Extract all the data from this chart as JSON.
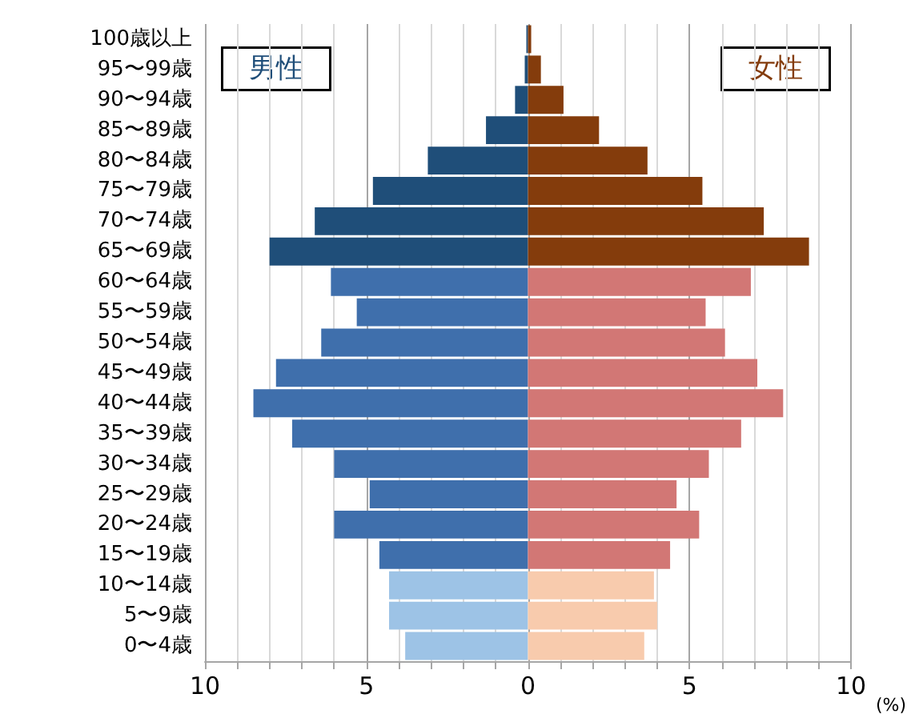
{
  "chart_data": {
    "type": "bar",
    "orientation": "horizontal",
    "xlabel": "(%)",
    "categories": [
      "100歳以上",
      "95〜99歳",
      "90〜94歳",
      "85〜89歳",
      "80〜84歳",
      "75〜79歳",
      "70〜74歳",
      "65〜69歳",
      "60〜64歳",
      "55〜59歳",
      "50〜54歳",
      "45〜49歳",
      "40〜44歳",
      "35〜39歳",
      "30〜34歳",
      "25〜29歳",
      "20〜24歳",
      "15〜19歳",
      "10〜14歳",
      "5〜9歳",
      "0〜4歳"
    ],
    "series": [
      {
        "name": "男性",
        "values": [
          -0.05,
          -0.1,
          -0.4,
          -1.3,
          -3.1,
          -4.8,
          -6.6,
          -8.0,
          -6.1,
          -5.3,
          -6.4,
          -7.8,
          -8.5,
          -7.3,
          -6.0,
          -4.9,
          -6.0,
          -4.6,
          -4.3,
          -4.3,
          -3.8
        ],
        "colors": [
          "#1f4e79",
          "#1f4e79",
          "#1f4e79",
          "#1f4e79",
          "#1f4e79",
          "#1f4e79",
          "#1f4e79",
          "#1f4e79",
          "#3f6fac",
          "#3f6fac",
          "#3f6fac",
          "#3f6fac",
          "#3f6fac",
          "#3f6fac",
          "#3f6fac",
          "#3f6fac",
          "#3f6fac",
          "#3f6fac",
          "#9dc3e6",
          "#9dc3e6",
          "#9dc3e6"
        ]
      },
      {
        "name": "女性",
        "values": [
          0.1,
          0.4,
          1.1,
          2.2,
          3.7,
          5.4,
          7.3,
          8.7,
          6.9,
          5.5,
          6.1,
          7.1,
          7.9,
          6.6,
          5.6,
          4.6,
          5.3,
          4.4,
          3.9,
          4.0,
          3.6
        ],
        "colors": [
          "#843c0c",
          "#843c0c",
          "#843c0c",
          "#843c0c",
          "#843c0c",
          "#843c0c",
          "#843c0c",
          "#843c0c",
          "#d27775",
          "#d27775",
          "#d27775",
          "#d27775",
          "#d27775",
          "#d27775",
          "#d27775",
          "#d27775",
          "#d27775",
          "#d27775",
          "#f8cbad",
          "#f8cbad",
          "#f8cbad"
        ]
      }
    ],
    "xlim": [
      -10,
      10
    ],
    "xticks": [
      {
        "value": -10,
        "label": "10"
      },
      {
        "value": -9,
        "label": null
      },
      {
        "value": -8,
        "label": null
      },
      {
        "value": -7,
        "label": null
      },
      {
        "value": -6,
        "label": null
      },
      {
        "value": -5,
        "label": "5"
      },
      {
        "value": -4,
        "label": null
      },
      {
        "value": -3,
        "label": null
      },
      {
        "value": -2,
        "label": null
      },
      {
        "value": -1,
        "label": null
      },
      0,
      {
        "value": 1,
        "label": null
      },
      {
        "value": 2,
        "label": null
      },
      {
        "value": 3,
        "label": null
      },
      {
        "value": 4,
        "label": null
      },
      5,
      {
        "value": 6,
        "label": null
      },
      {
        "value": 7,
        "label": null
      },
      {
        "value": 8,
        "label": null
      },
      {
        "value": 9,
        "label": null
      },
      10
    ],
    "grid": "x",
    "legend": false,
    "stacked": true
  }
}
